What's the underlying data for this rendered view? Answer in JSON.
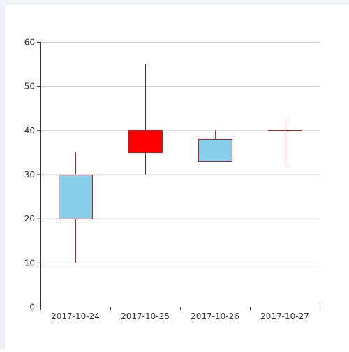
{
  "chart_data": {
    "type": "candlestick",
    "title": "",
    "xlabel": "",
    "ylabel": "",
    "ylim": [
      0,
      60
    ],
    "yticks": [
      0,
      10,
      20,
      30,
      40,
      50,
      60
    ],
    "grid": true,
    "categories": [
      "2017-10-24",
      "2017-10-25",
      "2017-10-26",
      "2017-10-27"
    ],
    "candles": [
      {
        "date": "2017-10-24",
        "open": 20,
        "close": 30,
        "low": 10,
        "high": 35
      },
      {
        "date": "2017-10-25",
        "open": 40,
        "close": 35,
        "low": 30,
        "high": 55
      },
      {
        "date": "2017-10-26",
        "open": 33,
        "close": 38,
        "low": 33,
        "high": 40
      },
      {
        "date": "2017-10-27",
        "open": 40,
        "close": 40,
        "low": 32,
        "high": 42
      }
    ],
    "colors": {
      "rising_fill": "#87CEEB",
      "falling_fill": "#FF0000",
      "candle_border": "#B22222",
      "falling_wick": "#333333",
      "grid": "#cccccc",
      "axis": "#333333"
    }
  }
}
